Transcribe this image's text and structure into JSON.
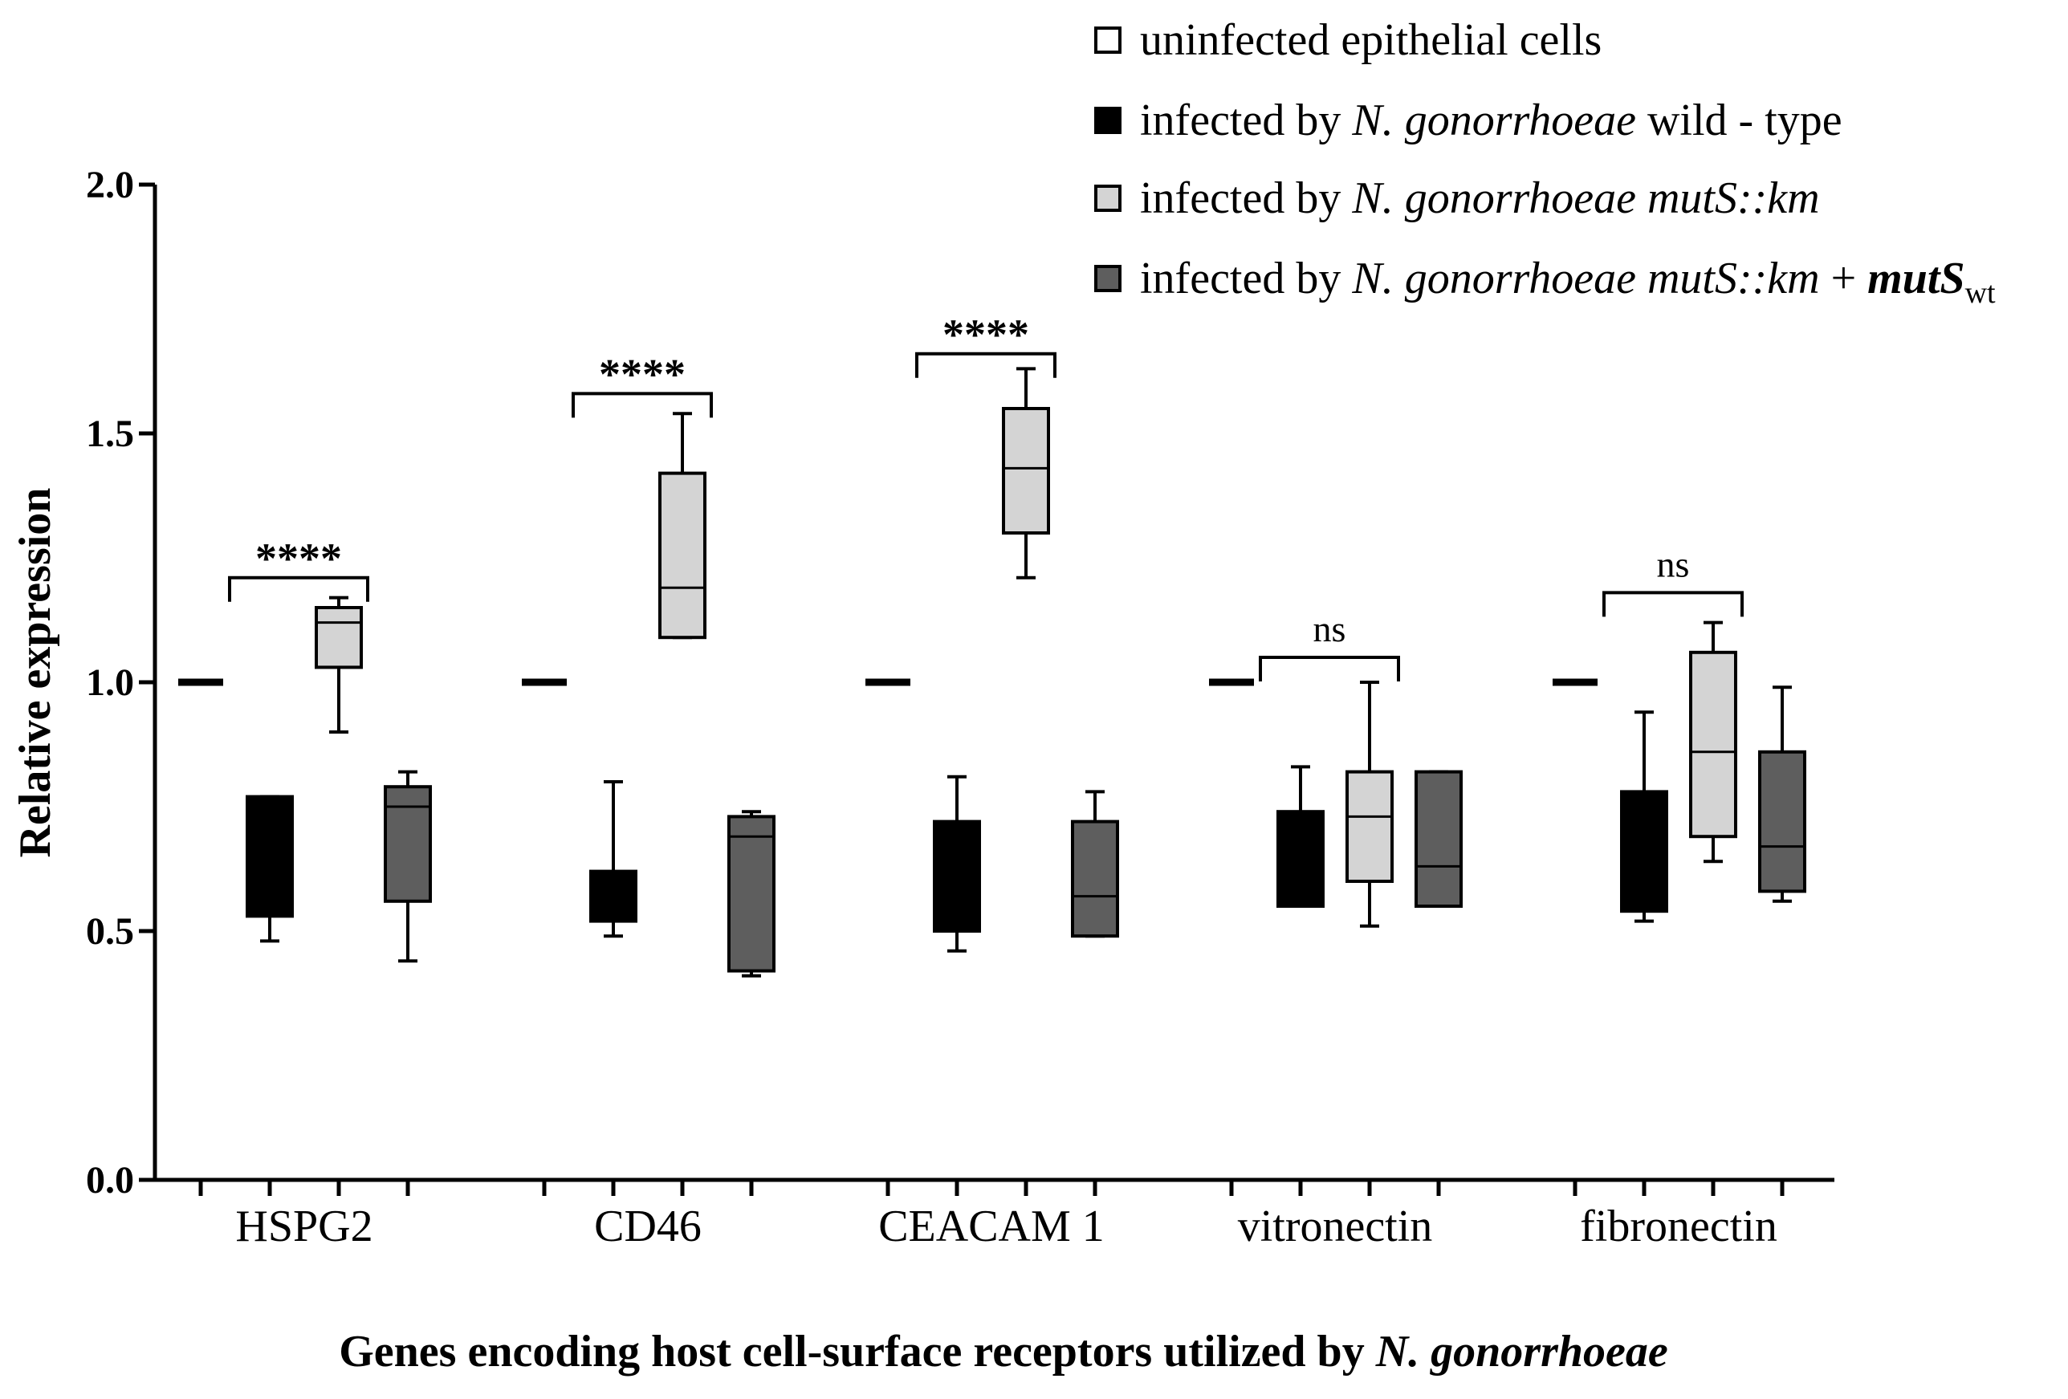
{
  "chart_data": {
    "type": "box",
    "xlabel": "Genes encoding host cell-surface receptors utilized by",
    "xlabel_italic": "N. gonorrhoeae",
    "ylabel": "Relative expression",
    "ylim": [
      0,
      2
    ],
    "yticks": [
      "0.0",
      "0.5",
      "1.0",
      "1.5",
      "2.0"
    ],
    "categories": [
      "HSPG2",
      "CD46",
      "CEACAM 1",
      "vitronectin",
      "fibronectin"
    ],
    "colors": {
      "uninfected": "#ffffff",
      "wild_type": "#000000",
      "mutS": "#d4d4d4",
      "mutS_comp": "#5e5e5e",
      "stroke": "#000000"
    },
    "legend": [
      {
        "key": "uninfected",
        "parts": [
          {
            "t": "uninfected epithelial cells",
            "s": "n"
          }
        ]
      },
      {
        "key": "wild_type",
        "parts": [
          {
            "t": "infected by ",
            "s": "n"
          },
          {
            "t": "N. gonorrhoeae",
            "s": "i"
          },
          {
            "t": " wild - type",
            "s": "n"
          }
        ]
      },
      {
        "key": "mutS",
        "parts": [
          {
            "t": "infected by ",
            "s": "n"
          },
          {
            "t": "N. gonorrhoeae mutS::km",
            "s": "i"
          }
        ]
      },
      {
        "key": "mutS_comp",
        "parts": [
          {
            "t": "infected by ",
            "s": "n"
          },
          {
            "t": "N. gonorrhoeae mutS::km",
            "s": "i"
          },
          {
            "t": " + ",
            "s": "n"
          },
          {
            "t": "mutS",
            "s": "bi"
          },
          {
            "t": "wt",
            "s": "sub"
          }
        ]
      }
    ],
    "series": [
      {
        "key": "uninfected",
        "name": "uninfected epithelial cells",
        "values": [
          1.0,
          1.0,
          1.0,
          1.0,
          1.0
        ]
      },
      {
        "key": "wild_type",
        "name": "infected by N. gonorrhoeae wild - type",
        "boxes": [
          {
            "min": 0.48,
            "q1": 0.53,
            "median": 0.76,
            "q3": 0.77,
            "max": 0.77
          },
          {
            "min": 0.49,
            "q1": 0.52,
            "median": 0.56,
            "q3": 0.62,
            "max": 0.8
          },
          {
            "min": 0.46,
            "q1": 0.5,
            "median": 0.62,
            "q3": 0.72,
            "max": 0.81
          },
          {
            "min": 0.55,
            "q1": 0.55,
            "median": 0.7,
            "q3": 0.74,
            "max": 0.83
          },
          {
            "min": 0.52,
            "q1": 0.54,
            "median": 0.76,
            "q3": 0.78,
            "max": 0.94
          }
        ]
      },
      {
        "key": "mutS",
        "name": "infected by N. gonorrhoeae mutS::km",
        "boxes": [
          {
            "min": 0.9,
            "q1": 1.03,
            "median": 1.12,
            "q3": 1.15,
            "max": 1.17
          },
          {
            "min": 1.09,
            "q1": 1.09,
            "median": 1.19,
            "q3": 1.42,
            "max": 1.54
          },
          {
            "min": 1.21,
            "q1": 1.3,
            "median": 1.43,
            "q3": 1.55,
            "max": 1.63
          },
          {
            "min": 0.51,
            "q1": 0.6,
            "median": 0.73,
            "q3": 0.82,
            "max": 1.0
          },
          {
            "min": 0.64,
            "q1": 0.69,
            "median": 0.86,
            "q3": 1.06,
            "max": 1.12
          }
        ]
      },
      {
        "key": "mutS_comp",
        "name": "infected by N. gonorrhoeae mutS::km + mutSwt",
        "boxes": [
          {
            "min": 0.44,
            "q1": 0.56,
            "median": 0.75,
            "q3": 0.79,
            "max": 0.82
          },
          {
            "min": 0.41,
            "q1": 0.42,
            "median": 0.69,
            "q3": 0.73,
            "max": 0.74
          },
          {
            "min": 0.49,
            "q1": 0.49,
            "median": 0.57,
            "q3": 0.72,
            "max": 0.78
          },
          {
            "min": 0.55,
            "q1": 0.55,
            "median": 0.63,
            "q3": 0.82,
            "max": 0.82
          },
          {
            "min": 0.56,
            "q1": 0.58,
            "median": 0.67,
            "q3": 0.86,
            "max": 0.99
          }
        ]
      }
    ],
    "significance": [
      {
        "category": "HSPG2",
        "label": "****",
        "y": 1.21
      },
      {
        "category": "CD46",
        "label": "****",
        "y": 1.58
      },
      {
        "category": "CEACAM 1",
        "label": "****",
        "y": 1.66
      },
      {
        "category": "vitronectin",
        "label": "ns",
        "y": 1.05
      },
      {
        "category": "fibronectin",
        "label": "ns",
        "y": 1.18
      }
    ]
  }
}
